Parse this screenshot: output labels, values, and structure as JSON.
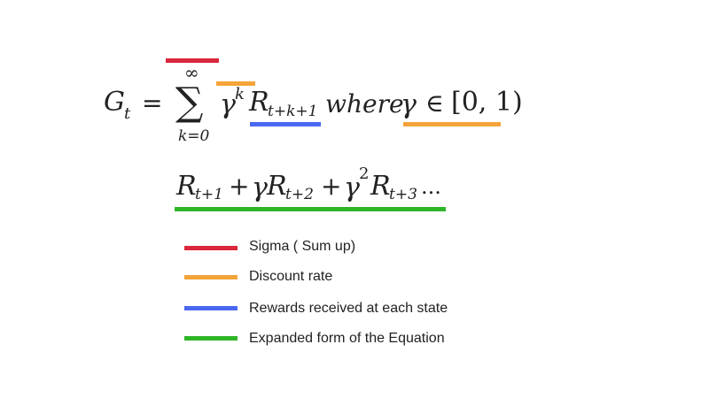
{
  "equation": {
    "lhs": "G",
    "lhs_subscript": "t",
    "equals": "=",
    "sum_symbol": "∑",
    "sum_upper": "∞",
    "sum_lower": "k=0",
    "discount": "γ",
    "discount_power": "k",
    "reward": "R",
    "reward_subscript": "t+k+1",
    "where": "where",
    "gamma": "γ",
    "in_symbol": "∈",
    "interval": "[0, 1)"
  },
  "expansion": {
    "r1": "R",
    "r1_sub": "t+1",
    "plus1": "+",
    "g1": "γ",
    "r2": "R",
    "r2_sub": "t+2",
    "plus2": "+",
    "g2": "γ",
    "g2_power": "2",
    "r3": "R",
    "r3_sub": "t+3",
    "ellipsis": "..."
  },
  "colors": {
    "sigma": "#d9273b",
    "discount": "#f5a43a",
    "rewards": "#4a68f0",
    "expanded": "#2fb528"
  },
  "legend": [
    {
      "label": "Sigma ( Sum up)",
      "color": "#d9273b"
    },
    {
      "label": "Discount rate",
      "color": "#f5a43a"
    },
    {
      "label": "Rewards received at each state",
      "color": "#4a68f0"
    },
    {
      "label": "Expanded form of the Equation",
      "color": "#2fb528"
    }
  ]
}
